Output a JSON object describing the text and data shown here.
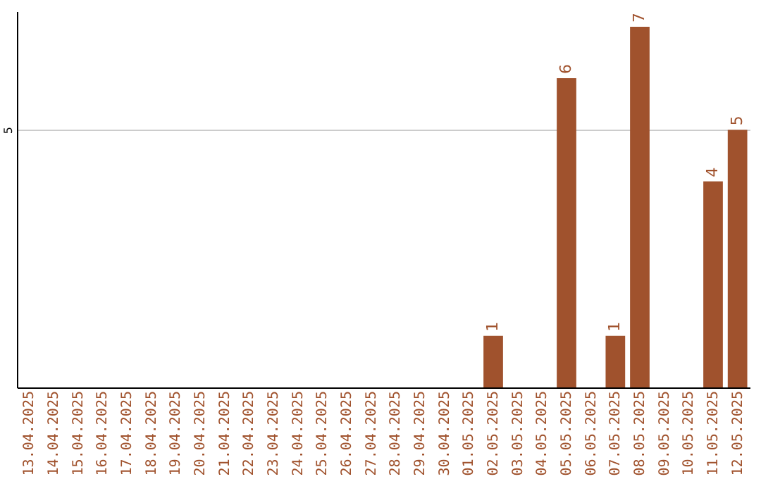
{
  "chart_data": {
    "type": "bar",
    "categories": [
      "13.04.2025",
      "14.04.2025",
      "15.04.2025",
      "16.04.2025",
      "17.04.2025",
      "18.04.2025",
      "19.04.2025",
      "20.04.2025",
      "21.04.2025",
      "22.04.2025",
      "23.04.2025",
      "24.04.2025",
      "25.04.2025",
      "26.04.2025",
      "27.04.2025",
      "28.04.2025",
      "29.04.2025",
      "30.04.2025",
      "01.05.2025",
      "02.05.2025",
      "03.05.2025",
      "04.05.2025",
      "05.05.2025",
      "06.05.2025",
      "07.05.2025",
      "08.05.2025",
      "09.05.2025",
      "10.05.2025",
      "11.05.2025",
      "12.05.2025"
    ],
    "values": [
      null,
      null,
      null,
      null,
      null,
      null,
      null,
      null,
      null,
      null,
      null,
      null,
      null,
      null,
      null,
      null,
      null,
      null,
      null,
      1,
      null,
      null,
      6,
      null,
      1,
      7,
      null,
      null,
      4,
      5
    ],
    "color": "#a0522d",
    "ylim": [
      0,
      7.3
    ],
    "yticks": [
      5
    ],
    "grid": "y",
    "data_labels": true
  }
}
